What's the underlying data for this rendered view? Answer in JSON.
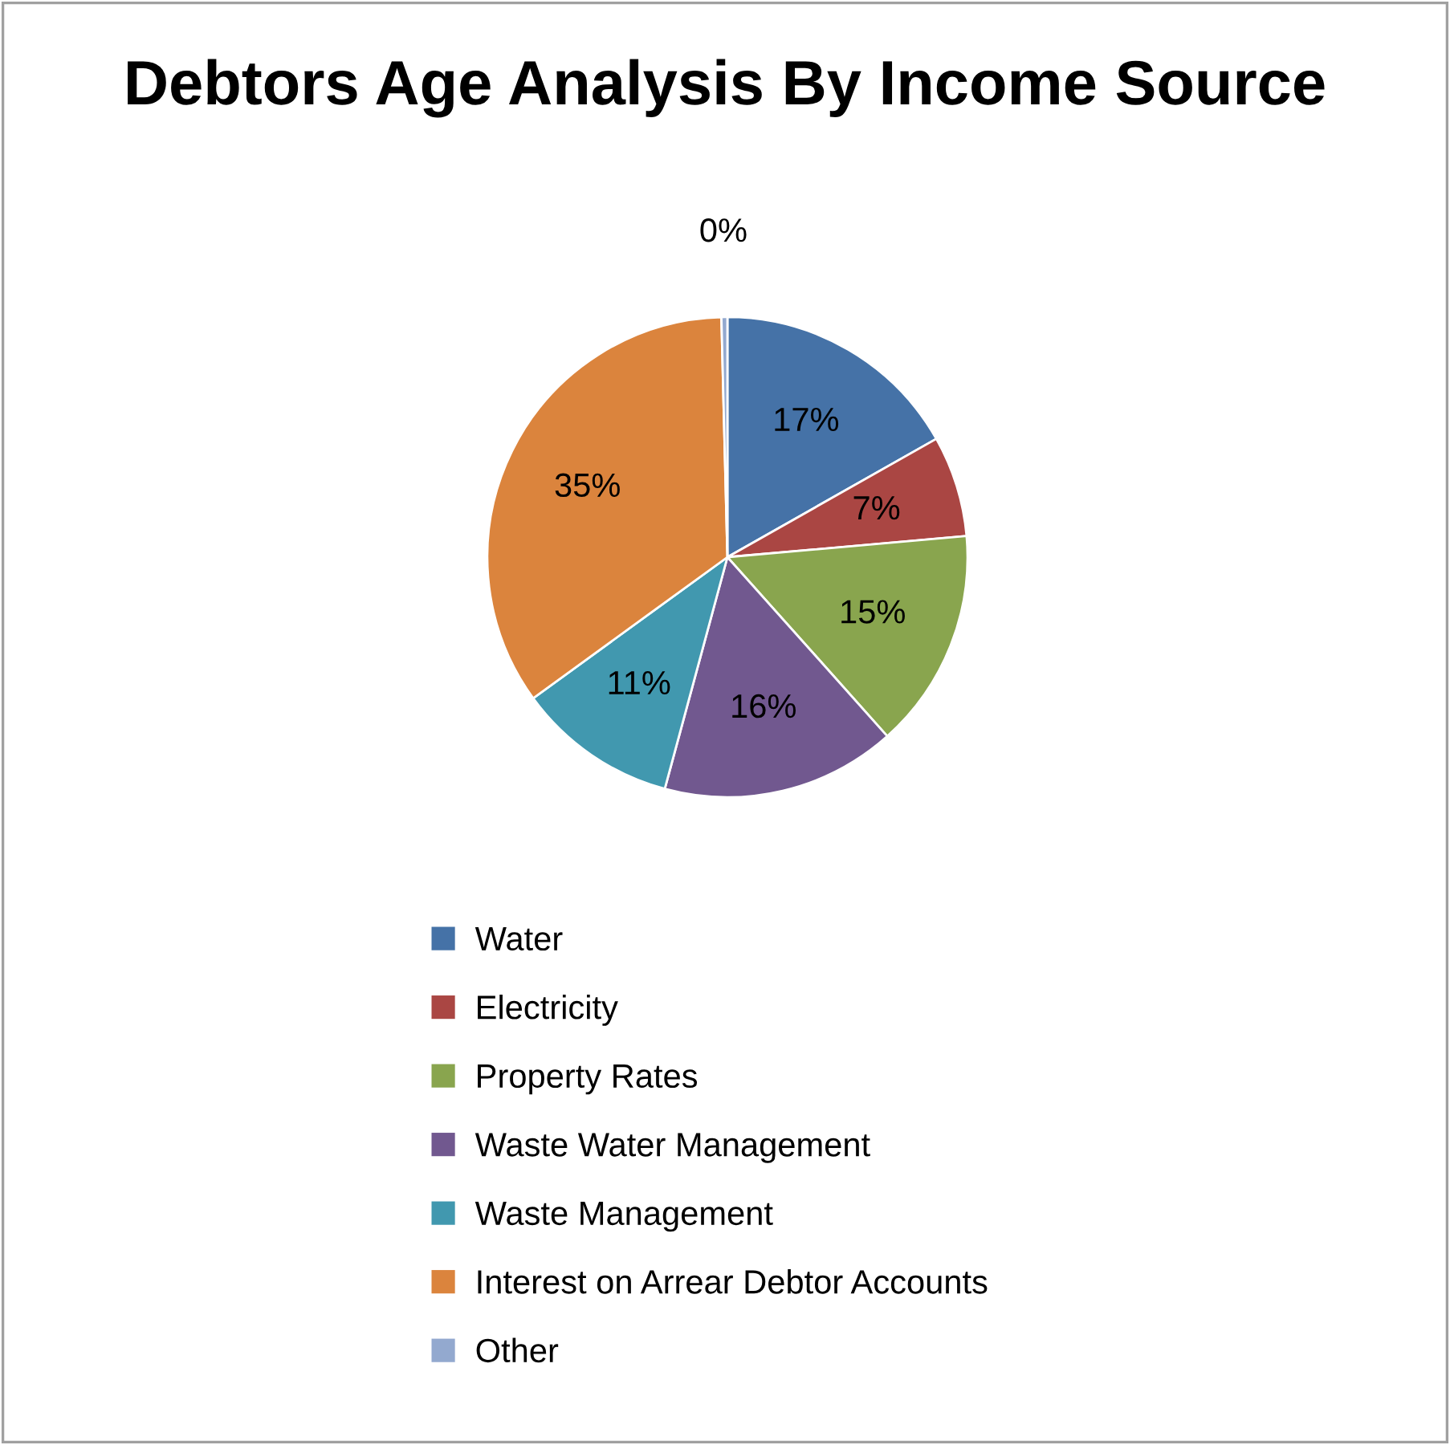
{
  "chart_data": {
    "type": "pie",
    "title": "Debtors Age Analysis By Income Source",
    "categories": [
      "Water",
      "Electricity",
      "Property Rates",
      "Waste Water Management",
      "Waste Management",
      "Interest on Arrear Debtor Accounts",
      "Other"
    ],
    "values": [
      16.8,
      6.8,
      14.8,
      15.8,
      10.8,
      34.6,
      0.4
    ],
    "value_labels": [
      "17%",
      "7%",
      "15%",
      "16%",
      "11%",
      "35%",
      "0%"
    ],
    "colors": [
      "#4572a7",
      "#aa4643",
      "#89a54e",
      "#71588f",
      "#4198af",
      "#db843d",
      "#93a9cf"
    ],
    "legend": "bottom"
  }
}
